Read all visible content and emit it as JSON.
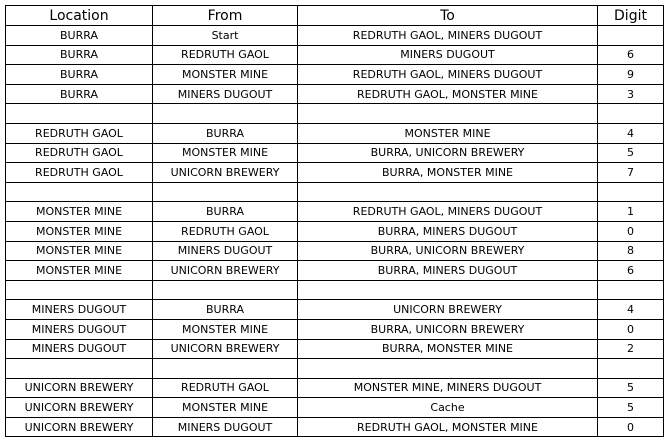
{
  "headers": [
    "Location",
    "From",
    "To",
    "Digit"
  ],
  "rows": [
    [
      "BURRA",
      "Start",
      "REDRUTH GAOL, MINERS DUGOUT",
      ""
    ],
    [
      "BURRA",
      "REDRUTH GAOL",
      "MINERS DUGOUT",
      "6"
    ],
    [
      "BURRA",
      "MONSTER MINE",
      "REDRUTH GAOL, MINERS DUGOUT",
      "9"
    ],
    [
      "BURRA",
      "MINERS DUGOUT",
      "REDRUTH GAOL, MONSTER MINE",
      "3"
    ],
    [
      "",
      "",
      "",
      ""
    ],
    [
      "REDRUTH GAOL",
      "BURRA",
      "MONSTER MINE",
      "4"
    ],
    [
      "REDRUTH GAOL",
      "MONSTER MINE",
      "BURRA, UNICORN BREWERY",
      "5"
    ],
    [
      "REDRUTH GAOL",
      "UNICORN BREWERY",
      "BURRA, MONSTER MINE",
      "7"
    ],
    [
      "",
      "",
      "",
      ""
    ],
    [
      "MONSTER MINE",
      "BURRA",
      "REDRUTH GAOL, MINERS DUGOUT",
      "1"
    ],
    [
      "MONSTER MINE",
      "REDRUTH GAOL",
      "BURRA, MINERS DUGOUT",
      "0"
    ],
    [
      "MONSTER MINE",
      "MINERS DUGOUT",
      "BURRA, UNICORN BREWERY",
      "8"
    ],
    [
      "MONSTER MINE",
      "UNICORN BREWERY",
      "BURRA, MINERS DUGOUT",
      "6"
    ],
    [
      "",
      "",
      "",
      ""
    ],
    [
      "MINERS DUGOUT",
      "BURRA",
      "UNICORN BREWERY",
      "4"
    ],
    [
      "MINERS DUGOUT",
      "MONSTER MINE",
      "BURRA, UNICORN BREWERY",
      "0"
    ],
    [
      "MINERS DUGOUT",
      "UNICORN BREWERY",
      "BURRA, MONSTER MINE",
      "2"
    ],
    [
      "",
      "",
      "",
      ""
    ],
    [
      "UNICORN BREWERY",
      "REDRUTH GAOL",
      "MONSTER MINE, MINERS DUGOUT",
      "5"
    ],
    [
      "UNICORN BREWERY",
      "MONSTER MINE",
      "Cache",
      "5"
    ],
    [
      "UNICORN BREWERY",
      "MINERS DUGOUT",
      "REDRUTH GAOL, MONSTER MINE",
      "0"
    ]
  ]
}
